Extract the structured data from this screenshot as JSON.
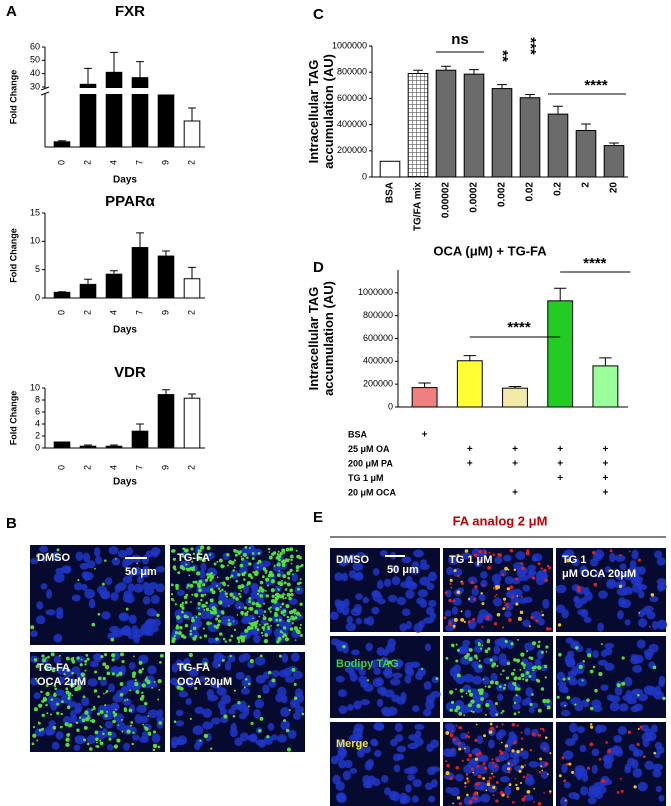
{
  "panel_letters": [
    "A",
    "B",
    "C",
    "D",
    "E"
  ],
  "chart_data": [
    {
      "type": "bar",
      "title": "FXR",
      "xlabel": "Days",
      "ylabel": "Fold Change",
      "categories": [
        "0",
        "2",
        "4",
        "7",
        "9",
        "2"
      ],
      "values": [
        1,
        32,
        41,
        37,
        25,
        5
      ],
      "errors": [
        0.2,
        12,
        15,
        12,
        0,
        2.5
      ],
      "colors": [
        "#000000",
        "#000000",
        "#000000",
        "#000000",
        "#000000",
        "#ffffff"
      ],
      "ylim": [
        0,
        60
      ],
      "ybreak": [
        10,
        30
      ],
      "yticks": [
        30,
        40,
        50,
        60
      ]
    },
    {
      "type": "bar",
      "title": "PPARα",
      "xlabel": "Days",
      "ylabel": "Fold Change",
      "categories": [
        "0",
        "2",
        "4",
        "7",
        "9",
        "2"
      ],
      "values": [
        1,
        2.4,
        4.2,
        8.9,
        7.4,
        3.4
      ],
      "errors": [
        0.1,
        0.9,
        0.6,
        2.6,
        0.9,
        2.0
      ],
      "colors": [
        "#000000",
        "#000000",
        "#000000",
        "#000000",
        "#000000",
        "#ffffff"
      ],
      "ylim": [
        0,
        15
      ],
      "yticks": [
        0,
        5,
        10,
        15
      ]
    },
    {
      "type": "bar",
      "title": "VDR",
      "xlabel": "Days",
      "ylabel": "Fold Change",
      "categories": [
        "0",
        "2",
        "4",
        "7",
        "9",
        "2"
      ],
      "values": [
        1,
        0.3,
        0.3,
        2.8,
        8.9,
        8.3
      ],
      "errors": [
        0,
        0.2,
        0.2,
        1.2,
        0.8,
        0.7
      ],
      "colors": [
        "#000000",
        "#000000",
        "#000000",
        "#000000",
        "#000000",
        "#ffffff"
      ],
      "ylim": [
        0,
        10
      ],
      "yticks": [
        0,
        2,
        4,
        6,
        8,
        10
      ]
    },
    {
      "type": "bar",
      "xlabel": "OCA (μM) + TG-FA",
      "ylabel": "Intracellular TAG accumulation (AU)",
      "categories": [
        "BSA",
        "TG/FA mix",
        "0.00002",
        "0.0002",
        "0.002",
        "0.02",
        "0.2",
        "2",
        "20"
      ],
      "values": [
        120000,
        790000,
        815000,
        785000,
        675000,
        605000,
        480000,
        355000,
        240000
      ],
      "errors": [
        0,
        25000,
        30000,
        35000,
        30000,
        25000,
        60000,
        50000,
        20000
      ],
      "colors": [
        "#ffffff",
        "hatch",
        "#6b6b6b",
        "#6b6b6b",
        "#6b6b6b",
        "#6b6b6b",
        "#6b6b6b",
        "#6b6b6b",
        "#6b6b6b"
      ],
      "ylim": [
        0,
        1000000
      ],
      "yticks": [
        0,
        200000,
        400000,
        600000,
        800000,
        1000000
      ],
      "annotations": [
        "ns",
        "**",
        "***",
        "****"
      ]
    },
    {
      "type": "bar",
      "ylabel": "Intracellular TAG accumulation (AU)",
      "values": [
        170000,
        405000,
        165000,
        930000,
        360000
      ],
      "errors": [
        40000,
        45000,
        15000,
        110000,
        70000
      ],
      "colors": [
        "#f08080",
        "#ffff33",
        "#f3eaa8",
        "#22cc22",
        "#99ff99"
      ],
      "ylim": [
        0,
        1200000
      ],
      "yticks": [
        0,
        200000,
        400000,
        600000,
        800000,
        1000000
      ],
      "annotations": [
        "****",
        "****"
      ],
      "conditions": {
        "rows": [
          "BSA",
          "25 μM OA",
          "200 μM PA",
          "TG 1 μM",
          "20 μM OCA"
        ],
        "marks": [
          [
            "+",
            null,
            null,
            null,
            null
          ],
          [
            null,
            "+",
            "+",
            "+",
            "+"
          ],
          [
            null,
            "+",
            "+",
            "+",
            "+"
          ],
          [
            null,
            null,
            null,
            "+",
            "+"
          ],
          [
            null,
            null,
            "+",
            null,
            "+"
          ]
        ]
      }
    }
  ],
  "panel_b": {
    "labels": [
      "DMSO",
      "TG-FA",
      "TG-FA OCA 2μM",
      "TG-FA OCA 20μM"
    ],
    "scale": "50 μm"
  },
  "panel_e": {
    "title": "FA analog 2 μM",
    "columns": [
      "DMSO",
      "TG 1 μM",
      "TG 1 μM OCA 20μM"
    ],
    "rows": [
      "Bodipy TAG",
      "Merge"
    ],
    "scale": "50 μm"
  }
}
